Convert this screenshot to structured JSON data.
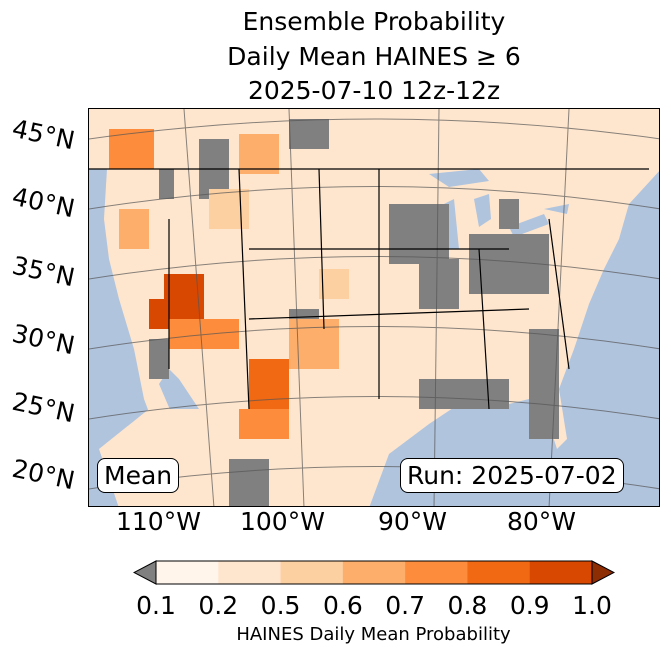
{
  "title": {
    "line1": "Ensemble Probability",
    "line2": "Daily Mean HAINES ≥ 6",
    "line3": "2025-07-10 12z-12z"
  },
  "map": {
    "lat_labels": [
      "45°N",
      "40°N",
      "35°N",
      "30°N",
      "25°N",
      "20°N"
    ],
    "lon_labels": [
      "110°W",
      "100°W",
      "90°W",
      "80°W"
    ],
    "stat_box": "Mean",
    "run_box": "Run: 2025-07-02",
    "colors": {
      "ocean": "#b0c4de",
      "missing": "#808080"
    }
  },
  "colorbar": {
    "ticks": [
      "0.1",
      "0.2",
      "0.5",
      "0.6",
      "0.7",
      "0.8",
      "0.9",
      "1.0"
    ],
    "colors": [
      "#fff5eb",
      "#fee6ce",
      "#fdd0a2",
      "#fdae6b",
      "#fd8d3c",
      "#f16913",
      "#d94801"
    ],
    "under_color": "#808080",
    "over_color": "#8c2d04",
    "label": "HAINES Daily Mean Probability"
  }
}
